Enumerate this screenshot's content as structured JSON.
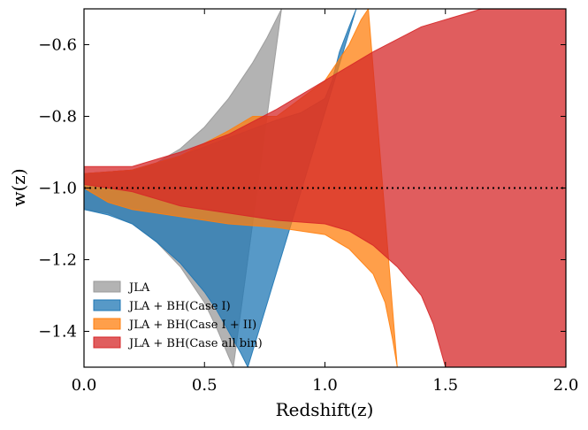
{
  "chart_data": {
    "type": "area",
    "title": "",
    "xlabel": "Redshift(z)",
    "ylabel": "w(z)",
    "xlim": [
      0.0,
      2.0
    ],
    "ylim": [
      -1.5,
      -0.5
    ],
    "xticks": [
      0.0,
      0.5,
      1.0,
      1.5,
      2.0
    ],
    "xtick_labels": [
      "0.0",
      "0.5",
      "1.0",
      "1.5",
      "2.0"
    ],
    "yticks": [
      -1.4,
      -1.2,
      -1.0,
      -0.8,
      -0.6
    ],
    "ytick_labels": [
      "−1.4",
      "−1.2",
      "−1.0",
      "−0.8",
      "−0.6"
    ],
    "reference_line": {
      "y": -1.0,
      "style": "dotted",
      "color": "#000000"
    },
    "legend": {
      "position": "bottom-left"
    },
    "series": [
      {
        "name": "JLA",
        "color": "#999999",
        "opacity": 0.75,
        "upper": [
          [
            0.0,
            -0.96
          ],
          [
            0.1,
            -0.955
          ],
          [
            0.2,
            -0.95
          ],
          [
            0.3,
            -0.93
          ],
          [
            0.4,
            -0.89
          ],
          [
            0.5,
            -0.83
          ],
          [
            0.6,
            -0.75
          ],
          [
            0.7,
            -0.65
          ],
          [
            0.76,
            -0.58
          ],
          [
            0.82,
            -0.5
          ]
        ],
        "lower": [
          [
            0.0,
            -1.06
          ],
          [
            0.1,
            -1.07
          ],
          [
            0.2,
            -1.1
          ],
          [
            0.3,
            -1.15
          ],
          [
            0.4,
            -1.22
          ],
          [
            0.5,
            -1.32
          ],
          [
            0.55,
            -1.39
          ],
          [
            0.6,
            -1.47
          ],
          [
            0.62,
            -1.5
          ]
        ]
      },
      {
        "name": "JLA + BH(Case I)",
        "color": "#1f77b4",
        "opacity": 0.75,
        "upper": [
          [
            0.0,
            -0.96
          ],
          [
            0.2,
            -0.95
          ],
          [
            0.4,
            -0.91
          ],
          [
            0.6,
            -0.86
          ],
          [
            0.8,
            -0.81
          ],
          [
            0.9,
            -0.79
          ],
          [
            1.0,
            -0.75
          ],
          [
            1.03,
            -0.7
          ],
          [
            1.06,
            -0.62
          ],
          [
            1.1,
            -0.55
          ],
          [
            1.13,
            -0.5
          ]
        ],
        "lower": [
          [
            0.0,
            -1.06
          ],
          [
            0.1,
            -1.075
          ],
          [
            0.2,
            -1.1
          ],
          [
            0.3,
            -1.15
          ],
          [
            0.4,
            -1.21
          ],
          [
            0.5,
            -1.29
          ],
          [
            0.55,
            -1.34
          ],
          [
            0.6,
            -1.4
          ],
          [
            0.65,
            -1.46
          ],
          [
            0.68,
            -1.5
          ]
        ]
      },
      {
        "name": "JLA + BH(Case I + II)",
        "color": "#ff7f0e",
        "opacity": 0.75,
        "upper": [
          [
            0.0,
            -0.96
          ],
          [
            0.2,
            -0.95
          ],
          [
            0.4,
            -0.91
          ],
          [
            0.6,
            -0.84
          ],
          [
            0.7,
            -0.8
          ],
          [
            0.8,
            -0.8
          ],
          [
            0.9,
            -0.75
          ],
          [
            1.0,
            -0.7
          ],
          [
            1.1,
            -0.6
          ],
          [
            1.15,
            -0.53
          ],
          [
            1.18,
            -0.5
          ]
        ],
        "lower": [
          [
            0.0,
            -1.0
          ],
          [
            0.1,
            -1.04
          ],
          [
            0.2,
            -1.06
          ],
          [
            0.4,
            -1.08
          ],
          [
            0.6,
            -1.1
          ],
          [
            0.8,
            -1.11
          ],
          [
            1.0,
            -1.13
          ],
          [
            1.1,
            -1.17
          ],
          [
            1.2,
            -1.24
          ],
          [
            1.25,
            -1.32
          ],
          [
            1.28,
            -1.42
          ],
          [
            1.3,
            -1.5
          ]
        ]
      },
      {
        "name": "JLA + BH(Case all bin)",
        "color": "#d62728",
        "opacity": 0.75,
        "upper": [
          [
            0.0,
            -0.94
          ],
          [
            0.2,
            -0.94
          ],
          [
            0.4,
            -0.9
          ],
          [
            0.6,
            -0.85
          ],
          [
            0.8,
            -0.78
          ],
          [
            1.0,
            -0.7
          ],
          [
            1.2,
            -0.62
          ],
          [
            1.4,
            -0.55
          ],
          [
            1.6,
            -0.51
          ],
          [
            1.65,
            -0.5
          ],
          [
            2.0,
            -0.5
          ]
        ],
        "lower": [
          [
            0.0,
            -0.99
          ],
          [
            0.2,
            -1.01
          ],
          [
            0.4,
            -1.05
          ],
          [
            0.6,
            -1.07
          ],
          [
            0.8,
            -1.09
          ],
          [
            1.0,
            -1.1
          ],
          [
            1.1,
            -1.12
          ],
          [
            1.2,
            -1.16
          ],
          [
            1.3,
            -1.22
          ],
          [
            1.4,
            -1.3
          ],
          [
            1.45,
            -1.38
          ],
          [
            1.5,
            -1.5
          ],
          [
            2.0,
            -1.5
          ]
        ]
      }
    ]
  }
}
